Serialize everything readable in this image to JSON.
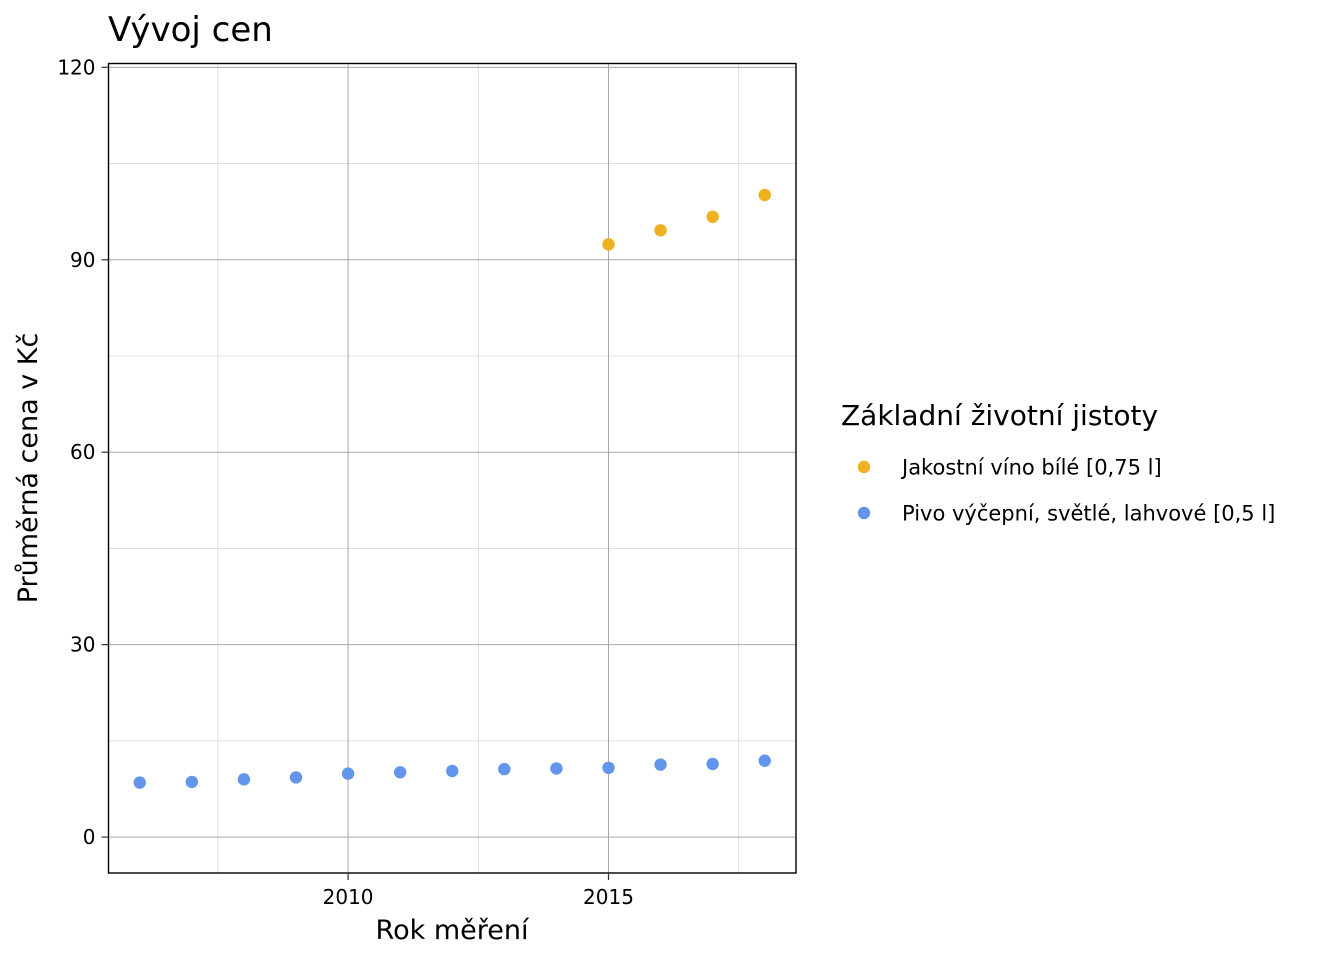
{
  "chart_data": {
    "type": "scatter",
    "title": "Vývoj cen",
    "xlabel": "Rok měření",
    "ylabel": "Průměrná cena v Kč",
    "xlim": [
      2005.4,
      2018.6
    ],
    "ylim": [
      -5.6,
      120.6
    ],
    "x_ticks": [
      2010,
      2015
    ],
    "x_minor_ticks": [
      2007.5,
      2012.5,
      2017.5
    ],
    "y_ticks": [
      0,
      30,
      60,
      90,
      120
    ],
    "y_minor_ticks": [
      15,
      45,
      75,
      105
    ],
    "grid": true,
    "legend": {
      "title": "Základní životní jistoty",
      "position": "right"
    },
    "series": [
      {
        "name": "Jakostní víno bílé [0,75 l]",
        "color": "#EFB120",
        "x": [
          2015,
          2016,
          2017,
          2018
        ],
        "y": [
          92.4,
          94.6,
          96.7,
          100.1
        ]
      },
      {
        "name": "Pivo výčepní, světlé, lahvové [0,5 l]",
        "color": "#6495ED",
        "x": [
          2006,
          2007,
          2008,
          2009,
          2010,
          2011,
          2012,
          2013,
          2014,
          2015,
          2016,
          2017,
          2018
        ],
        "y": [
          8.5,
          8.6,
          9.0,
          9.3,
          9.9,
          10.1,
          10.3,
          10.6,
          10.7,
          10.8,
          11.3,
          11.4,
          11.9
        ]
      }
    ]
  }
}
